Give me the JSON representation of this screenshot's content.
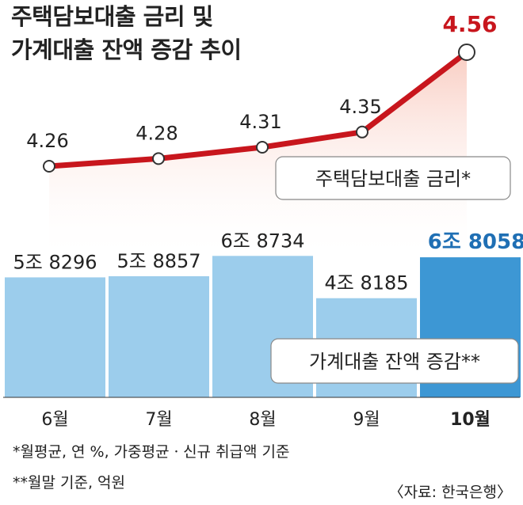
{
  "title_line1": "주택담보대출 금리 및",
  "title_line2": "가계대출 잔액 증감 추이",
  "chart_data": {
    "type": "bar+line",
    "categories": [
      "6월",
      "7월",
      "8월",
      "9월",
      "10월"
    ],
    "line_series": {
      "name": "주택담보대출 금리*",
      "values": [
        4.26,
        4.28,
        4.31,
        4.35,
        4.56
      ],
      "labels": [
        "4.26",
        "4.28",
        "4.31",
        "4.35",
        "4.56"
      ]
    },
    "bar_series": {
      "name": "가계대출 잔액 증감**",
      "values": [
        58296,
        58857,
        68734,
        48185,
        68058
      ],
      "labels": [
        "5조 8296",
        "5조 8857",
        "6조 8734",
        "4조 8185",
        "6조 8058"
      ]
    },
    "highlight_index": 4,
    "colors": {
      "line": "#c8161d",
      "line_fill": "#f6c6b4",
      "bar": "#9ccdec",
      "bar_highlight": "#3d97d4",
      "highlight_text": "#1f6fb4"
    }
  },
  "notes": [
    "*월평균, 연 %, 가중평균ㆍ신규 취급액 기준",
    "**월말 기준, 억원"
  ],
  "source": "〈자료: 한국은행〉"
}
